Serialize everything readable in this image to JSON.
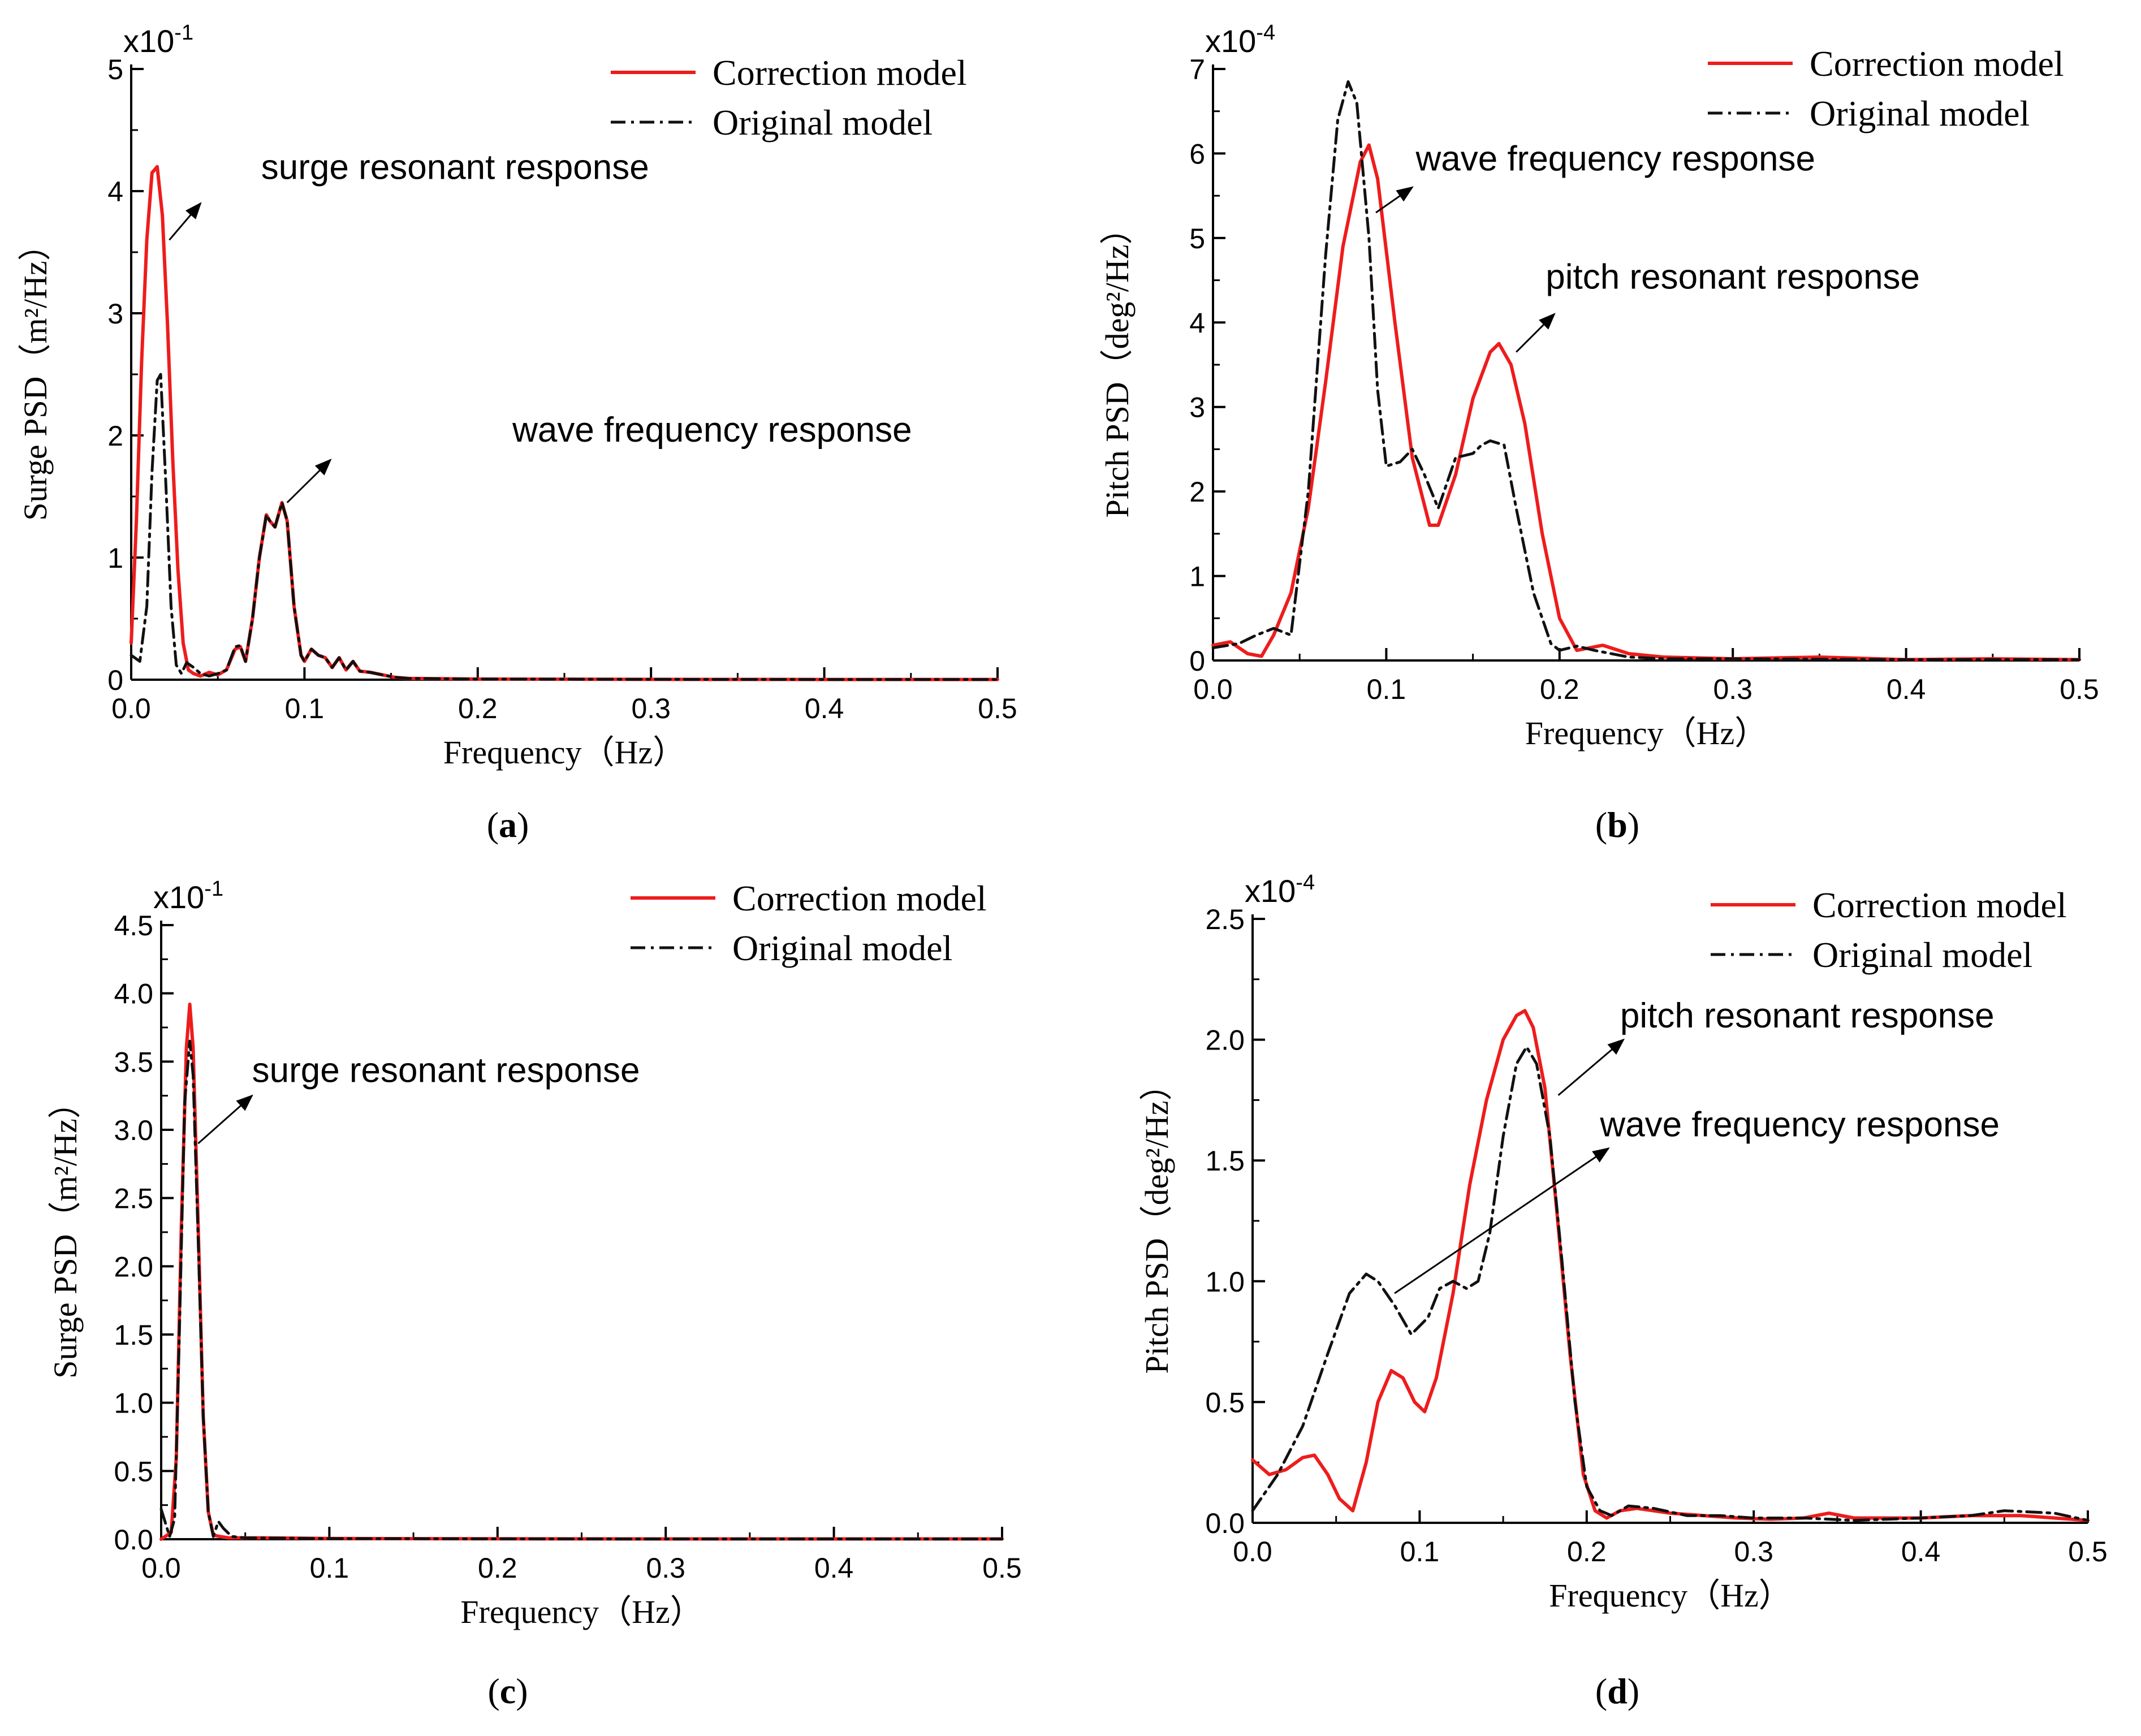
{
  "colors": {
    "correction": "#ee1c1c",
    "original": "#111111",
    "axis": "#000000"
  },
  "chart_data": [
    {
      "type": "line",
      "panel_label": "a",
      "xlabel": "Frequency（Hz）",
      "ylabel": "Surge PSD（m²/Hz）",
      "y_scale_base": "x10",
      "y_scale_exp": "-1",
      "xlim": [
        0,
        0.5
      ],
      "ylim": [
        0,
        5
      ],
      "xticks": [
        "0.0",
        "0.1",
        "0.2",
        "0.3",
        "0.4",
        "0.5"
      ],
      "yticks": [
        "0",
        "1",
        "2",
        "3",
        "4",
        "5"
      ],
      "legend": [
        "Correction model",
        "Original model"
      ],
      "series": [
        {
          "name": "Correction model",
          "style": "solid",
          "x": [
            0,
            0.003,
            0.006,
            0.009,
            0.012,
            0.015,
            0.018,
            0.021,
            0.024,
            0.027,
            0.03,
            0.033,
            0.036,
            0.04,
            0.045,
            0.05,
            0.055,
            0.06,
            0.063,
            0.066,
            0.07,
            0.074,
            0.078,
            0.08,
            0.083,
            0.087,
            0.09,
            0.094,
            0.098,
            0.1,
            0.104,
            0.108,
            0.112,
            0.116,
            0.12,
            0.124,
            0.128,
            0.132,
            0.138,
            0.145,
            0.152,
            0.16,
            0.2,
            0.3,
            0.4,
            0.5
          ],
          "y": [
            0.3,
            1.3,
            2.6,
            3.6,
            4.15,
            4.2,
            3.8,
            2.9,
            1.8,
            0.9,
            0.3,
            0.08,
            0.05,
            0.03,
            0.06,
            0.04,
            0.08,
            0.25,
            0.27,
            0.15,
            0.5,
            1.0,
            1.35,
            1.3,
            1.25,
            1.45,
            1.3,
            0.6,
            0.2,
            0.15,
            0.25,
            0.2,
            0.18,
            0.1,
            0.18,
            0.08,
            0.15,
            0.07,
            0.06,
            0.04,
            0.02,
            0.01,
            0.005,
            0.003,
            0.002,
            0.002
          ]
        },
        {
          "name": "Original model",
          "style": "dashdot",
          "x": [
            0,
            0.005,
            0.009,
            0.012,
            0.015,
            0.017,
            0.02,
            0.023,
            0.026,
            0.029,
            0.032,
            0.036,
            0.04,
            0.045,
            0.05,
            0.055,
            0.06,
            0.063,
            0.066,
            0.07,
            0.074,
            0.078,
            0.08,
            0.083,
            0.087,
            0.09,
            0.094,
            0.098,
            0.1,
            0.104,
            0.108,
            0.112,
            0.116,
            0.12,
            0.124,
            0.128,
            0.132,
            0.138,
            0.145,
            0.152,
            0.16,
            0.2,
            0.3,
            0.4,
            0.5
          ],
          "y": [
            0.2,
            0.15,
            0.6,
            1.7,
            2.45,
            2.5,
            1.6,
            0.6,
            0.12,
            0.05,
            0.14,
            0.1,
            0.05,
            0.03,
            0.05,
            0.08,
            0.27,
            0.28,
            0.15,
            0.5,
            1.0,
            1.35,
            1.3,
            1.25,
            1.45,
            1.3,
            0.6,
            0.2,
            0.15,
            0.25,
            0.2,
            0.18,
            0.1,
            0.18,
            0.08,
            0.15,
            0.07,
            0.06,
            0.04,
            0.02,
            0.01,
            0.005,
            0.003,
            0.002,
            0.002
          ]
        }
      ],
      "annotations": [
        {
          "text": "surge resonant response",
          "point": [
            0.022,
            3.6
          ],
          "tip": [
            0.04,
            3.9
          ],
          "text_at": [
            0.075,
            4.1
          ]
        },
        {
          "text": "wave frequency response",
          "point": [
            0.09,
            1.45
          ],
          "tip": [
            0.115,
            1.8
          ],
          "text_at": [
            0.22,
            1.95
          ]
        }
      ]
    },
    {
      "type": "line",
      "panel_label": "b",
      "xlabel": "Frequency（Hz）",
      "ylabel": "Pitch PSD（deg²/Hz）",
      "y_scale_base": "x10",
      "y_scale_exp": "-4",
      "xlim": [
        0,
        0.5
      ],
      "ylim": [
        0,
        7
      ],
      "xticks": [
        "0.0",
        "0.1",
        "0.2",
        "0.3",
        "0.4",
        "0.5"
      ],
      "yticks": [
        "0",
        "1",
        "2",
        "3",
        "4",
        "5",
        "6",
        "7"
      ],
      "legend": [
        "Correction model",
        "Original model"
      ],
      "series": [
        {
          "name": "Correction model",
          "style": "solid",
          "x": [
            0,
            0.01,
            0.02,
            0.028,
            0.035,
            0.045,
            0.055,
            0.065,
            0.075,
            0.085,
            0.09,
            0.095,
            0.105,
            0.115,
            0.125,
            0.13,
            0.14,
            0.15,
            0.16,
            0.165,
            0.172,
            0.18,
            0.19,
            0.2,
            0.21,
            0.225,
            0.24,
            0.26,
            0.28,
            0.3,
            0.35,
            0.4,
            0.45,
            0.5
          ],
          "y": [
            0.18,
            0.22,
            0.08,
            0.05,
            0.3,
            0.8,
            1.8,
            3.3,
            4.9,
            5.9,
            6.1,
            5.7,
            4.0,
            2.4,
            1.6,
            1.6,
            2.2,
            3.1,
            3.65,
            3.75,
            3.5,
            2.8,
            1.5,
            0.5,
            0.12,
            0.18,
            0.08,
            0.04,
            0.03,
            0.02,
            0.04,
            0.01,
            0.02,
            0.01
          ]
        },
        {
          "name": "Original model",
          "style": "dashdot",
          "x": [
            0,
            0.015,
            0.025,
            0.035,
            0.045,
            0.055,
            0.065,
            0.072,
            0.078,
            0.083,
            0.09,
            0.095,
            0.1,
            0.108,
            0.115,
            0.122,
            0.13,
            0.14,
            0.15,
            0.155,
            0.16,
            0.168,
            0.175,
            0.185,
            0.195,
            0.2,
            0.21,
            0.22,
            0.24,
            0.26,
            0.3,
            0.4,
            0.5
          ],
          "y": [
            0.15,
            0.2,
            0.3,
            0.38,
            0.3,
            2.0,
            4.8,
            6.4,
            6.85,
            6.6,
            5.0,
            3.2,
            2.3,
            2.35,
            2.5,
            2.2,
            1.8,
            2.4,
            2.45,
            2.55,
            2.6,
            2.55,
            1.8,
            0.8,
            0.2,
            0.12,
            0.17,
            0.12,
            0.04,
            0.02,
            0.02,
            0.01,
            0.01
          ]
        }
      ],
      "annotations": [
        {
          "text": "wave frequency response",
          "point": [
            0.094,
            5.3
          ],
          "tip": [
            0.115,
            5.6
          ],
          "text_at": [
            0.117,
            5.8
          ]
        },
        {
          "text": "pitch resonant response",
          "point": [
            0.175,
            3.65
          ],
          "tip": [
            0.197,
            4.1
          ],
          "text_at": [
            0.192,
            4.4
          ]
        }
      ]
    },
    {
      "type": "line",
      "panel_label": "c",
      "xlabel": "Frequency（Hz）",
      "ylabel": "Surge PSD（m²/Hz）",
      "y_scale_base": "x10",
      "y_scale_exp": "-1",
      "xlim": [
        0,
        0.5
      ],
      "ylim": [
        0,
        4.5
      ],
      "xticks": [
        "0.0",
        "0.1",
        "0.2",
        "0.3",
        "0.4",
        "0.5"
      ],
      "yticks": [
        "0.0",
        "0.5",
        "1.0",
        "1.5",
        "2.0",
        "2.5",
        "3.0",
        "3.5",
        "4.0",
        "4.5"
      ],
      "legend": [
        "Correction model",
        "Original model"
      ],
      "series": [
        {
          "name": "Correction model",
          "style": "solid",
          "x": [
            0,
            0.006,
            0.009,
            0.012,
            0.015,
            0.017,
            0.019,
            0.022,
            0.025,
            0.028,
            0.031,
            0.035,
            0.04,
            0.06,
            0.1,
            0.2,
            0.3,
            0.4,
            0.5
          ],
          "y": [
            0.0,
            0.05,
            0.6,
            2.3,
            3.6,
            3.92,
            3.6,
            2.3,
            0.9,
            0.2,
            0.03,
            0.02,
            0.01,
            0.01,
            0.005,
            0.003,
            0.002,
            0.002,
            0.002
          ]
        },
        {
          "name": "Original model",
          "style": "dashdot",
          "x": [
            0,
            0.005,
            0.008,
            0.011,
            0.014,
            0.017,
            0.019,
            0.022,
            0.025,
            0.028,
            0.031,
            0.034,
            0.037,
            0.042,
            0.05,
            0.1,
            0.2,
            0.3,
            0.4,
            0.5
          ],
          "y": [
            0.22,
            0.02,
            0.15,
            1.6,
            3.2,
            3.65,
            3.4,
            2.2,
            0.9,
            0.2,
            0.02,
            0.13,
            0.08,
            0.02,
            0.01,
            0.005,
            0.003,
            0.002,
            0.002,
            0.002
          ]
        }
      ],
      "annotations": [
        {
          "text": "surge resonant response",
          "point": [
            0.022,
            2.9
          ],
          "tip": [
            0.054,
            3.25
          ],
          "text_at": [
            0.054,
            3.35
          ]
        }
      ]
    },
    {
      "type": "line",
      "panel_label": "d",
      "xlabel": "Frequency（Hz）",
      "ylabel": "Pitch PSD（deg²/Hz）",
      "y_scale_base": "x10",
      "y_scale_exp": "-4",
      "xlim": [
        0,
        0.5
      ],
      "ylim": [
        0,
        2.5
      ],
      "xticks": [
        "0.0",
        "0.1",
        "0.2",
        "0.3",
        "0.4",
        "0.5"
      ],
      "yticks": [
        "0.0",
        "0.5",
        "1.0",
        "1.5",
        "2.0",
        "2.5"
      ],
      "legend": [
        "Correction model",
        "Original model"
      ],
      "series": [
        {
          "name": "Correction model",
          "style": "solid",
          "x": [
            0,
            0.01,
            0.02,
            0.03,
            0.037,
            0.045,
            0.052,
            0.06,
            0.068,
            0.075,
            0.083,
            0.09,
            0.097,
            0.103,
            0.11,
            0.12,
            0.13,
            0.14,
            0.15,
            0.158,
            0.163,
            0.168,
            0.175,
            0.182,
            0.19,
            0.198,
            0.205,
            0.212,
            0.22,
            0.23,
            0.25,
            0.27,
            0.29,
            0.31,
            0.33,
            0.345,
            0.36,
            0.38,
            0.4,
            0.43,
            0.46,
            0.5
          ],
          "y": [
            0.26,
            0.2,
            0.22,
            0.27,
            0.28,
            0.2,
            0.1,
            0.05,
            0.25,
            0.5,
            0.63,
            0.6,
            0.5,
            0.46,
            0.6,
            0.95,
            1.4,
            1.75,
            2.0,
            2.1,
            2.12,
            2.05,
            1.8,
            1.3,
            0.7,
            0.2,
            0.05,
            0.02,
            0.05,
            0.06,
            0.04,
            0.03,
            0.02,
            0.015,
            0.02,
            0.04,
            0.02,
            0.02,
            0.02,
            0.03,
            0.03,
            0.01
          ]
        },
        {
          "name": "Original model",
          "style": "dashdot",
          "x": [
            0,
            0.015,
            0.03,
            0.045,
            0.058,
            0.068,
            0.075,
            0.085,
            0.095,
            0.105,
            0.112,
            0.12,
            0.128,
            0.135,
            0.142,
            0.15,
            0.158,
            0.164,
            0.17,
            0.178,
            0.185,
            0.193,
            0.2,
            0.208,
            0.215,
            0.225,
            0.24,
            0.26,
            0.28,
            0.3,
            0.33,
            0.36,
            0.4,
            0.43,
            0.45,
            0.48,
            0.5
          ],
          "y": [
            0.05,
            0.2,
            0.4,
            0.7,
            0.95,
            1.03,
            1.0,
            0.9,
            0.78,
            0.85,
            0.97,
            1.0,
            0.97,
            1.0,
            1.2,
            1.6,
            1.9,
            1.97,
            1.9,
            1.6,
            1.1,
            0.5,
            0.15,
            0.05,
            0.03,
            0.07,
            0.06,
            0.03,
            0.03,
            0.02,
            0.02,
            0.01,
            0.02,
            0.03,
            0.05,
            0.04,
            0.01
          ]
        }
      ],
      "annotations": [
        {
          "text": "pitch resonant response",
          "point": [
            0.183,
            1.77
          ],
          "tip": [
            0.222,
            2.0
          ],
          "text_at": [
            0.22,
            2.05
          ]
        },
        {
          "text": "wave frequency response",
          "point": [
            0.085,
            0.95
          ],
          "tip": [
            0.213,
            1.55
          ],
          "text_at": [
            0.208,
            1.6
          ]
        }
      ]
    }
  ]
}
